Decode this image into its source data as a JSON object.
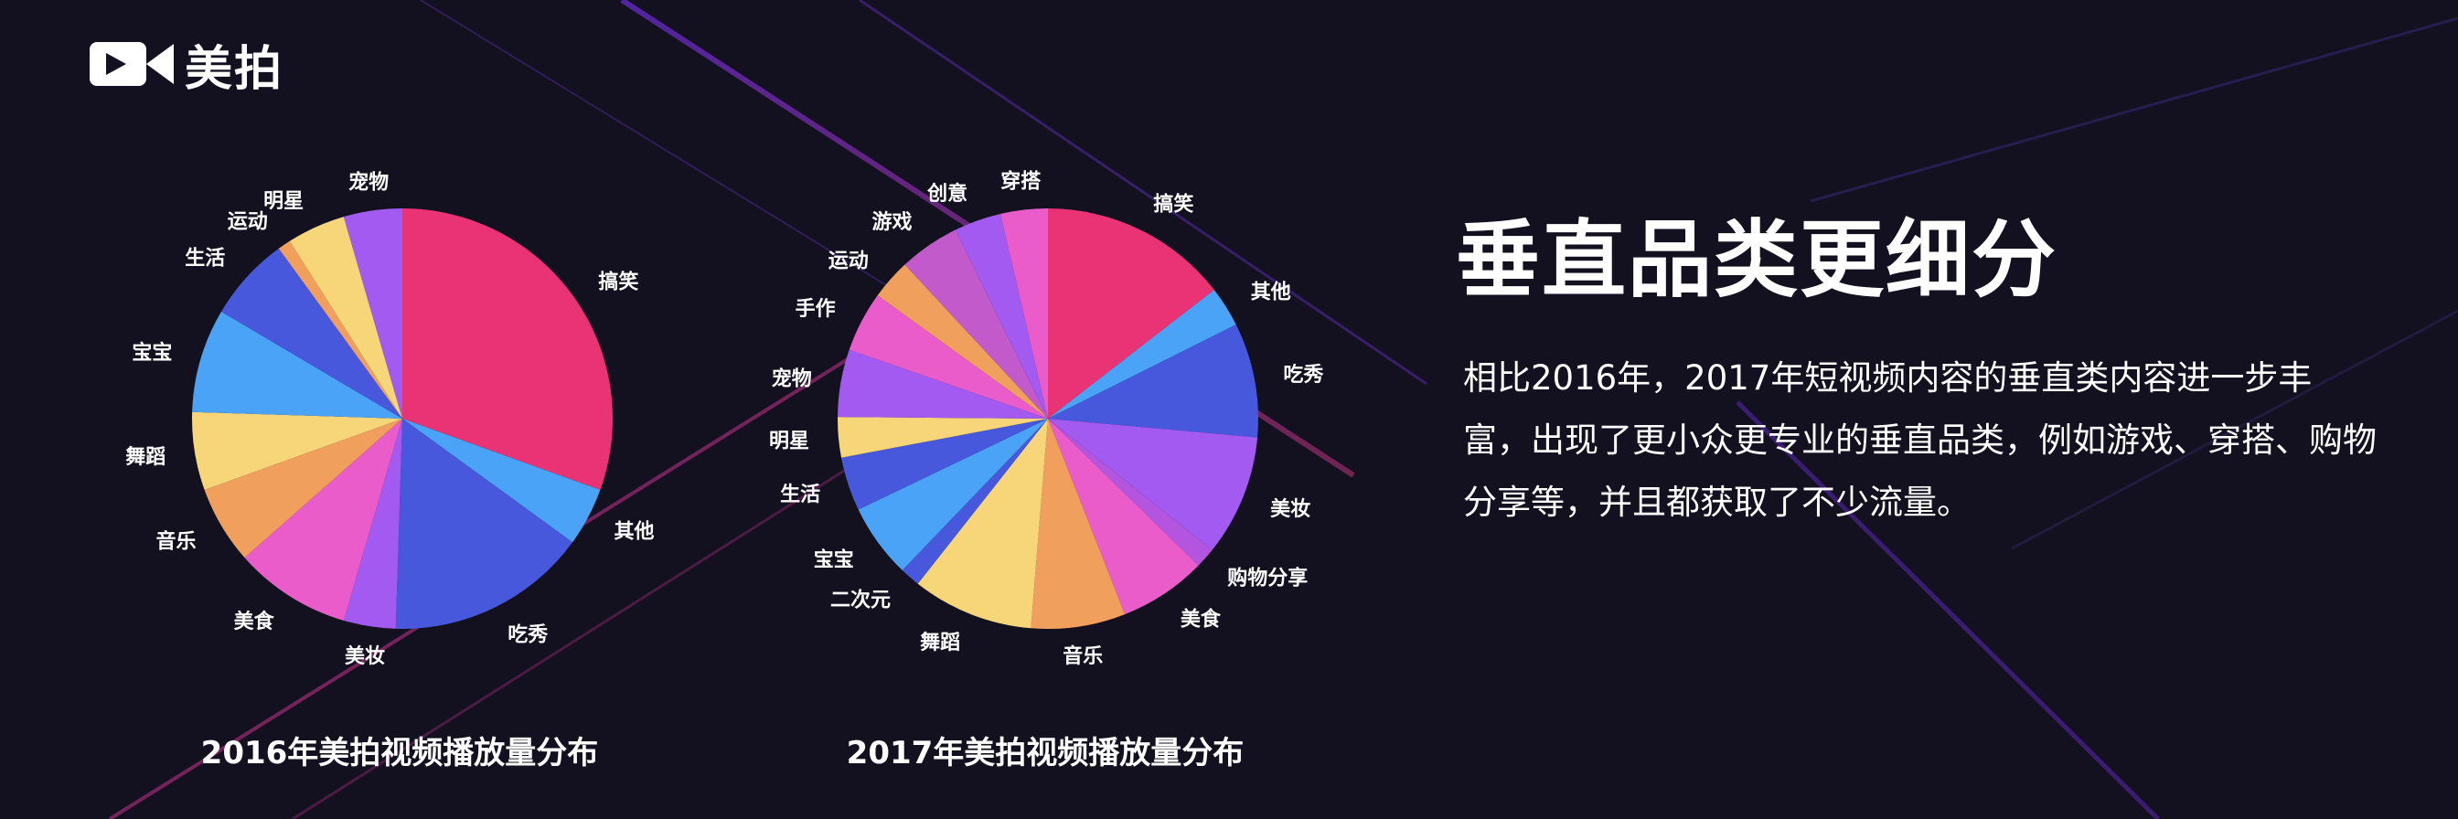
{
  "brand": {
    "name": "美拍"
  },
  "colors": {
    "background": "#13111f",
    "accent_purple": "#6a2bd6",
    "accent_magenta": "#d63a8a"
  },
  "headline": "垂直品类更细分",
  "description": "相比2016年，2017年短视频内容的垂直类内容进一步丰富，出现了更小众更专业的垂直品类，例如游戏、穿搭、购物分享等，并且都获取了不少流量。",
  "chart_data": [
    {
      "type": "pie",
      "title": "2016年美拍视频播放量分布",
      "legend": "none",
      "start_angle": "12 o'clock, clockwise",
      "slices": [
        {
          "label": "搞笑",
          "value": 30.5,
          "color": "#e93374"
        },
        {
          "label": "其他",
          "value": 4.5,
          "color": "#4aa3f7"
        },
        {
          "label": "吃秀",
          "value": 15.5,
          "color": "#4758dc"
        },
        {
          "label": "美妆",
          "value": 4,
          "color": "#a25af0"
        },
        {
          "label": "美食",
          "value": 9,
          "color": "#ea5cca"
        },
        {
          "label": "音乐",
          "value": 6,
          "color": "#f0a05c"
        },
        {
          "label": "舞蹈",
          "value": 6,
          "color": "#f7d679"
        },
        {
          "label": "宝宝",
          "value": 8,
          "color": "#4aa3f7"
        },
        {
          "label": "生活",
          "value": 6.5,
          "color": "#4758dc"
        },
        {
          "label": "运动",
          "value": 1,
          "color": "#f0a05c"
        },
        {
          "label": "明星",
          "value": 4.5,
          "color": "#f7d679"
        },
        {
          "label": "宠物",
          "value": 4.5,
          "color": "#a25af0"
        }
      ]
    },
    {
      "type": "pie",
      "title": "2017年美拍视频播放量分布",
      "legend": "none",
      "start_angle": "12 o'clock, clockwise",
      "slices": [
        {
          "label": "搞笑",
          "value": 14,
          "color": "#e93374"
        },
        {
          "label": "其他",
          "value": 3,
          "color": "#4aa3f7"
        },
        {
          "label": "吃秀",
          "value": 8.5,
          "color": "#4758dc"
        },
        {
          "label": "美妆",
          "value": 9,
          "color": "#a25af0"
        },
        {
          "label": "购物分享",
          "value": 1.5,
          "color": "#b455e0"
        },
        {
          "label": "美食",
          "value": 6.5,
          "color": "#ea5cca"
        },
        {
          "label": "音乐",
          "value": 7,
          "color": "#f0a05c"
        },
        {
          "label": "舞蹈",
          "value": 9,
          "color": "#f7d679"
        },
        {
          "label": "二次元",
          "value": 1.5,
          "color": "#4758dc"
        },
        {
          "label": "宝宝",
          "value": 5.5,
          "color": "#4aa3f7"
        },
        {
          "label": "生活",
          "value": 4,
          "color": "#4758dc"
        },
        {
          "label": "明星",
          "value": 3,
          "color": "#f7d679"
        },
        {
          "label": "宠物",
          "value": 5,
          "color": "#a25af0"
        },
        {
          "label": "手作",
          "value": 4.5,
          "color": "#ea5cca"
        },
        {
          "label": "运动",
          "value": 3,
          "color": "#f0a05c"
        },
        {
          "label": "游戏",
          "value": 4.5,
          "color": "#c25acc"
        },
        {
          "label": "创意",
          "value": 3.5,
          "color": "#a25af0"
        },
        {
          "label": "穿搭",
          "value": 3.5,
          "color": "#ea5cca"
        }
      ]
    }
  ]
}
